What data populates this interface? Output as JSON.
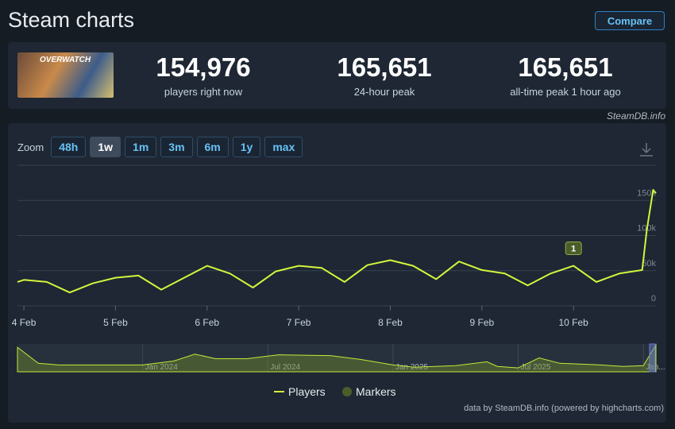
{
  "header": {
    "title": "Steam charts",
    "compare": "Compare"
  },
  "game": {
    "name": "OVERWATCH"
  },
  "stats": [
    {
      "value": "154,976",
      "label": "players right now"
    },
    {
      "value": "165,651",
      "label": "24-hour peak"
    },
    {
      "value": "165,651",
      "label": "all-time peak 1 hour ago"
    }
  ],
  "source": "SteamDB.info",
  "zoom": {
    "label": "Zoom",
    "options": [
      "48h",
      "1w",
      "1m",
      "3m",
      "6m",
      "1y",
      "max"
    ],
    "active": "1w"
  },
  "chart_data": [
    {
      "type": "line",
      "x": [
        -0.07,
        0,
        0.25,
        0.5,
        0.75,
        1,
        1.25,
        1.5,
        1.75,
        2,
        2.25,
        2.5,
        2.75,
        3,
        3.25,
        3.5,
        3.75,
        4,
        4.25,
        4.5,
        4.75,
        5,
        5.25,
        5.5,
        5.75,
        6,
        6.25,
        6.5,
        6.75,
        6.8,
        6.87,
        6.9
      ],
      "series": [
        {
          "name": "Players",
          "color": "#d4f53c",
          "values": [
            34000,
            37000,
            34000,
            19000,
            32000,
            40000,
            43000,
            23000,
            40000,
            57000,
            46000,
            26000,
            49000,
            57000,
            54000,
            34000,
            58000,
            65000,
            57000,
            38000,
            63000,
            51000,
            46000,
            29000,
            46000,
            57000,
            34000,
            46000,
            51000,
            108000,
            165000,
            160000
          ]
        }
      ],
      "markers": {
        "name": "Markers",
        "color": "#4b5e2a",
        "points": [
          {
            "x": 6,
            "label": "1"
          }
        ]
      },
      "xlim": [
        -0.07,
        6.9
      ],
      "xticks": [
        {
          "value": 0,
          "label": "4 Feb"
        },
        {
          "value": 1,
          "label": "5 Feb"
        },
        {
          "value": 2,
          "label": "6 Feb"
        },
        {
          "value": 3,
          "label": "7 Feb"
        },
        {
          "value": 4,
          "label": "8 Feb"
        },
        {
          "value": 5,
          "label": "9 Feb"
        },
        {
          "value": 6,
          "label": "10 Feb"
        }
      ],
      "ylim": [
        0,
        200000
      ],
      "yticks": [
        0,
        {
          "value": 50000,
          "label": "50k"
        },
        {
          "value": 100000,
          "label": "100k"
        },
        {
          "value": 150000,
          "label": "150k"
        },
        {
          "value": 200000,
          "label": ""
        }
      ],
      "grid": true
    },
    {
      "type": "area",
      "x": [
        -6,
        -5,
        -4,
        -2,
        0,
        1.5,
        2.5,
        3.5,
        5,
        6.5,
        9,
        10.5,
        12,
        13,
        15,
        16.5,
        17,
        18,
        19,
        20,
        22,
        23,
        24,
        24.6
      ],
      "series": [
        {
          "name": "Players",
          "color": "#c5e83a",
          "values": [
            150000,
            52000,
            42000,
            42000,
            42000,
            66000,
            108000,
            80000,
            80000,
            104000,
            99000,
            75000,
            42000,
            28000,
            38000,
            61000,
            33000,
            24000,
            85000,
            52000,
            42000,
            33000,
            38000,
            165000
          ]
        }
      ],
      "xlim": [
        -6,
        24.6
      ],
      "ylim": [
        0,
        170000
      ],
      "xticks": [
        {
          "value": 0,
          "label": "Jan 2024"
        },
        {
          "value": 6,
          "label": "Jul 2024"
        },
        {
          "value": 12,
          "label": "Jan 2025"
        },
        {
          "value": 18,
          "label": "Jul 2025"
        },
        {
          "value": 24,
          "label": "Jan..."
        }
      ]
    }
  ],
  "credit": "data by SteamDB.info (powered by highcharts.com)"
}
